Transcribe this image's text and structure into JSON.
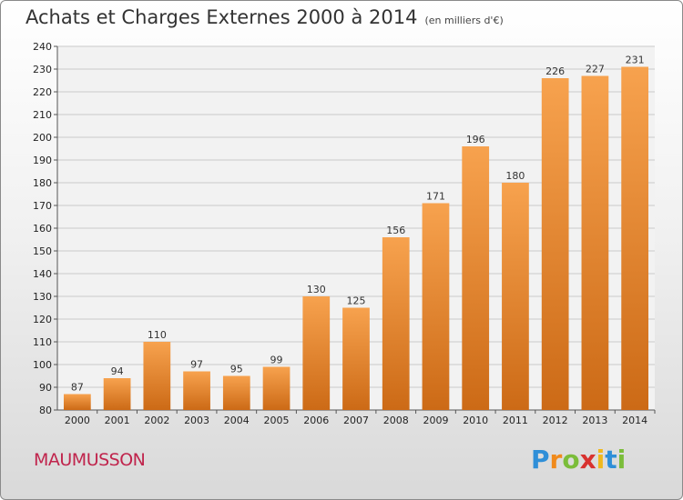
{
  "header": {
    "title": "Achats et Charges Externes 2000 à 2014",
    "unit": "(en milliers d'€)"
  },
  "footer": {
    "commune": "MAUMUSSON",
    "logo": [
      "P",
      "r",
      "o",
      "x",
      "i",
      "t",
      "i"
    ],
    "logo_colors": [
      "#2f8fd8",
      "#f08a1c",
      "#7bbd3a",
      "#d8322f",
      "#f0b81c",
      "#2f8fd8",
      "#7bbd3a"
    ]
  },
  "colors": {
    "bar_light": "#f7a24e",
    "bar_dark": "#cc6a16",
    "grid": "#c9c9c9",
    "axis": "#555555"
  },
  "chart_data": {
    "type": "bar",
    "categories": [
      "2000",
      "2001",
      "2002",
      "2003",
      "2004",
      "2005",
      "2006",
      "2007",
      "2008",
      "2009",
      "2010",
      "2011",
      "2012",
      "2013",
      "2014"
    ],
    "values": [
      87,
      94,
      110,
      97,
      95,
      99,
      130,
      125,
      156,
      171,
      196,
      180,
      226,
      227,
      231
    ],
    "ylim": [
      80,
      240
    ],
    "yticks": [
      80,
      90,
      100,
      110,
      120,
      130,
      140,
      150,
      160,
      170,
      180,
      190,
      200,
      210,
      220,
      230,
      240
    ],
    "grid": true,
    "data_labels": true
  }
}
